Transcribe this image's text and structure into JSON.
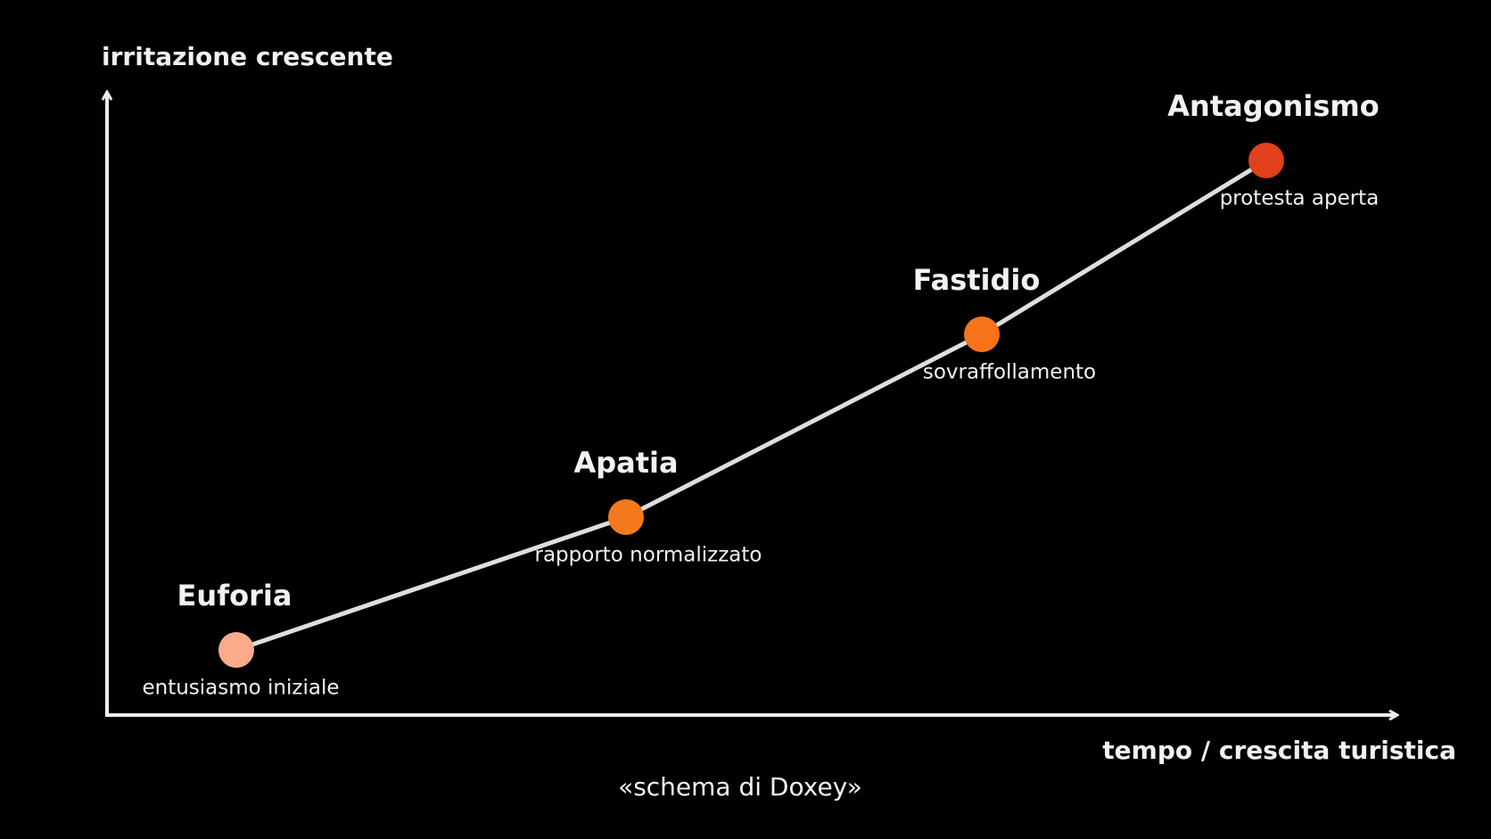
{
  "axes": {
    "y_label": "irritazione crescente",
    "x_label": "tempo / crescita turistica"
  },
  "caption": "«schema di Doxey»",
  "nodes": [
    {
      "label": "Euforia",
      "sublabel": "entusiasmo iniziale",
      "color": "#f9ab8c"
    },
    {
      "label": "Apatia",
      "sublabel": "rapporto normalizzato",
      "color": "#f57a1e"
    },
    {
      "label": "Fastidio",
      "sublabel": "sovraffollamento",
      "color": "#f7731a"
    },
    {
      "label": "Antagonismo",
      "sublabel": "protesta aperta",
      "color": "#e0401b"
    }
  ]
}
